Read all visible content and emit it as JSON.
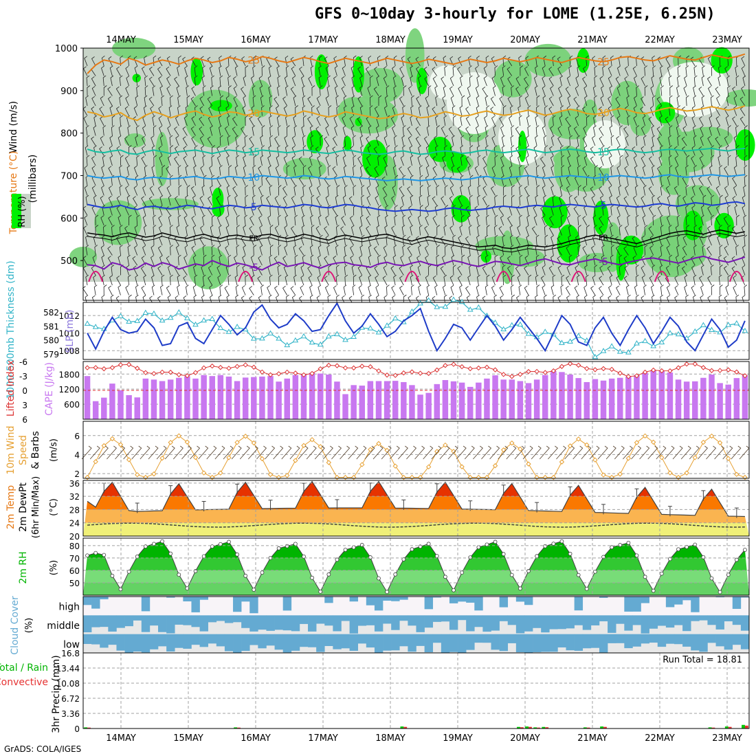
{
  "title": "GFS 0~10day 3-hourly for LOME (1.25E, 6.25N)",
  "credit": "GrADS: COLA/IGES",
  "colors": {
    "rh_light": "#c8d4c8",
    "rh_green": "#78d278",
    "rh_bright": "#00f000",
    "sfc_fill1": "#f0f078",
    "sfc_fill2": "#fab450",
    "sfc_fill3": "#fa7800",
    "sfc_fill4": "#e63200",
    "rh2_fill1": "#78dc78",
    "rh2_fill2": "#32c832",
    "rh2_fill3": "#00b400",
    "cloud": "#64aad2",
    "cape": "#c878f0",
    "slp": "#1e3cc8",
    "thick": "#32b4c8",
    "li": "#dc3232",
    "wind10": "#e6a032",
    "rain_total": "#00c800",
    "rain_conv": "#e63232"
  },
  "chart_data": {
    "type": "meteogram",
    "title": "GFS 0~10day 3-hourly for LOME (1.25E, 6.25N)",
    "x_dates": [
      "14MAY",
      "15MAY",
      "16MAY",
      "17MAY",
      "18MAY",
      "19MAY",
      "20MAY",
      "21MAY",
      "22MAY",
      "23MAY"
    ],
    "panels": [
      {
        "id": "upper",
        "ylabel_parts": [
          "RH (%)",
          "Temperature (°C)",
          "Wind (m/s)"
        ],
        "ylabel_units": "(millibars)",
        "y_ticks": [
          500,
          600,
          700,
          800,
          900,
          1000
        ],
        "ylim": [
          450,
          1000
        ],
        "isotherms": [
          {
            "label": "-5",
            "color": "#7814b4",
            "p": [
              490,
              488,
              480,
              495,
              490,
              478,
              482,
              494,
              486,
              495,
              490,
              480,
              486,
              492,
              488,
              500,
              492,
              486,
              494,
              490,
              484,
              478,
              488,
              496,
              486,
              490,
              495,
              488,
              482,
              490,
              494,
              496,
              490,
              488,
              484,
              492,
              496,
              490,
              488,
              494,
              498,
              492,
              488,
              494,
              500,
              496,
              490,
              486,
              492,
              498,
              496,
              492,
              488,
              494,
              500,
              504,
              498,
              492,
              490,
              496,
              500,
              504,
              498,
              494,
              490,
              496,
              500,
              504,
              506,
              502,
              498,
              494,
              500,
              506,
              510,
              504,
              500,
              496,
              502,
              508
            ]
          },
          {
            "label": "FR",
            "color": "#000000",
            "p": [
              565,
              562,
              560,
              556,
              562,
              565,
              560,
              555,
              558,
              565,
              560,
              555,
              552,
              558,
              562,
              556,
              552,
              558,
              560,
              556,
              554,
              560,
              562,
              556,
              552,
              556,
              562,
              558,
              552,
              548,
              556,
              560,
              556,
              552,
              556,
              560,
              562,
              556,
              550,
              546,
              552,
              556,
              552,
              548,
              544,
              540,
              536,
              532,
              534,
              536,
              530,
              528,
              532,
              536,
              534,
              532,
              536,
              540,
              546,
              550,
              556,
              560,
              556,
              552,
              548,
              544,
              540,
              546,
              552,
              558,
              564,
              568,
              570,
              566,
              562,
              568,
              572,
              568,
              564,
              568
            ]
          },
          {
            "label": "5",
            "color": "#1e3cd2",
            "p": [
              632,
              628,
              624,
              626,
              630,
              624,
              620,
              626,
              628,
              624,
              622,
              626,
              630,
              628,
              624,
              622,
              626,
              630,
              628,
              624,
              626,
              630,
              628,
              626,
              624,
              628,
              632,
              630,
              626,
              624,
              628,
              632,
              630,
              626,
              624,
              620,
              618,
              616,
              618,
              620,
              618,
              616,
              618,
              622,
              624,
              620,
              618,
              620,
              622,
              626,
              628,
              626,
              624,
              628,
              630,
              628,
              626,
              630,
              632,
              630,
              628,
              626,
              630,
              632,
              630,
              628,
              626,
              628,
              632,
              634,
              630,
              628,
              632,
              636,
              634,
              630,
              632,
              636,
              638,
              634
            ]
          },
          {
            "label": "10",
            "color": "#1e96e6",
            "p": [
              700,
              696,
              694,
              696,
              698,
              692,
              690,
              694,
              696,
              694,
              692,
              694,
              696,
              698,
              694,
              692,
              694,
              698,
              696,
              694,
              696,
              700,
              698,
              696,
              694,
              696,
              700,
              698,
              694,
              692,
              694,
              698,
              696,
              694,
              692,
              690,
              688,
              690,
              692,
              690,
              688,
              690,
              692,
              694,
              692,
              690,
              692,
              696,
              698,
              694,
              692,
              696,
              698,
              700,
              696,
              694,
              696,
              698,
              700,
              698,
              696,
              694,
              696,
              698,
              700,
              698,
              696,
              694,
              696,
              700,
              702,
              698,
              696,
              698,
              700,
              702,
              700,
              698,
              700,
              702
            ]
          },
          {
            "label": "15",
            "color": "#14bea0",
            "p": [
              762,
              756,
              754,
              758,
              760,
              752,
              750,
              756,
              760,
              756,
              752,
              756,
              758,
              760,
              756,
              752,
              756,
              760,
              758,
              754,
              756,
              760,
              758,
              756,
              754,
              756,
              760,
              758,
              754,
              752,
              756,
              760,
              758,
              754,
              752,
              750,
              752,
              756,
              758,
              754,
              750,
              752,
              756,
              758,
              756,
              752,
              754,
              758,
              760,
              756,
              754,
              756,
              760,
              762,
              758,
              754,
              756,
              760,
              762,
              760,
              756,
              754,
              756,
              760,
              762,
              760,
              756,
              754,
              756,
              760,
              762,
              760,
              758,
              760,
              762,
              764,
              760,
              758,
              762,
              764
            ]
          },
          {
            "label": "20",
            "color": "#e6a01e",
            "p": [
              850,
              846,
              838,
              842,
              848,
              836,
              830,
              842,
              850,
              844,
              836,
              842,
              848,
              852,
              844,
              838,
              842,
              850,
              848,
              842,
              846,
              852,
              848,
              844,
              840,
              844,
              852,
              848,
              842,
              838,
              842,
              850,
              846,
              842,
              838,
              834,
              836,
              842,
              846,
              842,
              836,
              838,
              844,
              850,
              846,
              840,
              842,
              848,
              852,
              846,
              842,
              844,
              850,
              854,
              848,
              842,
              846,
              852,
              856,
              852,
              846,
              844,
              848,
              854,
              858,
              854,
              848,
              846,
              850,
              856,
              860,
              856,
              852,
              854,
              858,
              862,
              858,
              854,
              858,
              864
            ]
          },
          {
            "label": "25",
            "color": "#e67814",
            "p": [
              940,
              960,
              972,
              968,
              962,
              976,
              970,
              960,
              966,
              972,
              968,
              962,
              970,
              976,
              972,
              966,
              970,
              978,
              974,
              968,
              972,
              980,
              976,
              970,
              966,
              972,
              978,
              974,
              968,
              964,
              970,
              976,
              972,
              968,
              964,
              970,
              976,
              972,
              968,
              964,
              968,
              974,
              970,
              966,
              962,
              968,
              974,
              970,
              966,
              970,
              976,
              972,
              968,
              972,
              978,
              974,
              970,
              966,
              972,
              978,
              974,
              970,
              968,
              972,
              978,
              980,
              976,
              972,
              970,
              976,
              982,
              978,
              974,
              972,
              978,
              984,
              980,
              976,
              980,
              986
            ]
          }
        ]
      },
      {
        "id": "slp_thickness",
        "ylabel_left": "1000-500mb Thickness (dm)",
        "ylabel_right": "SLP (mb)",
        "slp_ticks": [
          1008,
          1010,
          1012
        ],
        "slp_ylim": [
          1007,
          1013.5
        ],
        "thick_ticks": [
          579,
          580,
          581,
          582
        ],
        "thick_ylim": [
          578.6,
          582.7
        ],
        "slp": [
          1010.0,
          1008.2,
          1010.2,
          1011.8,
          1010.4,
          1010.0,
          1010.2,
          1011.6,
          1010.6,
          1008.6,
          1008.8,
          1010.8,
          1011.2,
          1009.4,
          1008.8,
          1010.4,
          1012.0,
          1011.0,
          1009.8,
          1010.6,
          1012.4,
          1013.2,
          1011.6,
          1010.6,
          1011.0,
          1012.2,
          1011.4,
          1010.2,
          1010.4,
          1012.0,
          1013.4,
          1011.4,
          1010.0,
          1010.8,
          1012.2,
          1011.0,
          1009.6,
          1010.2,
          1011.4,
          1012.0,
          1012.8,
          1010.2,
          1008.0,
          1009.4,
          1011.0,
          1010.6,
          1009.2,
          1010.6,
          1012.0,
          1010.8,
          1009.2,
          1010.4,
          1011.8,
          1010.6,
          1009.4,
          1008.0,
          1010.0,
          1012.0,
          1011.0,
          1009.0,
          1008.6,
          1010.6,
          1011.8,
          1010.0,
          1008.6,
          1010.4,
          1012.0,
          1010.6,
          1008.8,
          1010.2,
          1011.8,
          1010.8,
          1009.0,
          1008.0,
          1009.8,
          1011.6,
          1010.4,
          1008.4,
          1009.2,
          1011.4
        ]
      },
      {
        "id": "cape_li",
        "ylabel_left": "Lifted Index",
        "ylabel_right": "CAPE (J/kg)",
        "cape_ticks": [
          600,
          1200,
          1800
        ],
        "cape_ylim": [
          0,
          2300
        ],
        "li_ticks": [
          -3,
          0,
          3,
          6
        ],
        "li_labels": [
          "-6",
          "-3",
          "0",
          "3",
          "6"
        ],
        "cape": [
          1720,
          720,
          860,
          1420,
          1160,
          960,
          870,
          1620,
          1580,
          1520,
          1580,
          1650,
          1710,
          1620,
          1760,
          1720,
          1760,
          1700,
          1520,
          1660,
          1680,
          1700,
          1720,
          1500,
          1620,
          1760,
          1780,
          1850,
          1820,
          1780,
          1500,
          1000,
          1360,
          1340,
          1520,
          1520,
          1520,
          1530,
          1480,
          1360,
          980,
          1050,
          1400,
          1560,
          1510,
          1460,
          1290,
          1460,
          1620,
          1750,
          1580,
          1580,
          1520,
          1440,
          1580,
          1760,
          1920,
          1880,
          1780,
          1640,
          1480,
          1600,
          1540,
          1620,
          1650,
          1700,
          1760,
          1850,
          1950,
          1940,
          1860,
          1580,
          1500,
          1510,
          1650,
          1780,
          1440,
          1380,
          1640,
          1760
        ]
      },
      {
        "id": "wind10",
        "ylabel": "10m Wind Speed & Barbs",
        "yunits": "(m/s)",
        "y_ticks": [
          2,
          4,
          6
        ],
        "ylim": [
          1.5,
          7.5
        ]
      },
      {
        "id": "temp2m",
        "ylabel": "2m Temp 2m DewPt (6hr Min/Max)",
        "yunits": "(°C)",
        "y_ticks": [
          20,
          24,
          28,
          32,
          36
        ],
        "ylim": [
          20,
          36.8
        ]
      },
      {
        "id": "rh2m",
        "ylabel": "2m RH",
        "yunits": "(%)",
        "y_ticks": [
          50,
          60,
          70,
          80
        ],
        "ylim": [
          40,
          86
        ]
      },
      {
        "id": "cloud",
        "ylabel": "Cloud Cover",
        "yunits": "(%)",
        "levels": [
          "high",
          "middle",
          "low"
        ]
      },
      {
        "id": "precip",
        "ylabel_parts": [
          "Total / Rain",
          "Convective"
        ],
        "ylabel": "3hr Precip (mm)",
        "y_ticks": [
          0,
          3.36,
          6.72,
          10.08,
          13.44,
          16.8
        ],
        "ylim": [
          0,
          16.8
        ],
        "run_total_label": "Run Total = 18.81"
      }
    ]
  }
}
